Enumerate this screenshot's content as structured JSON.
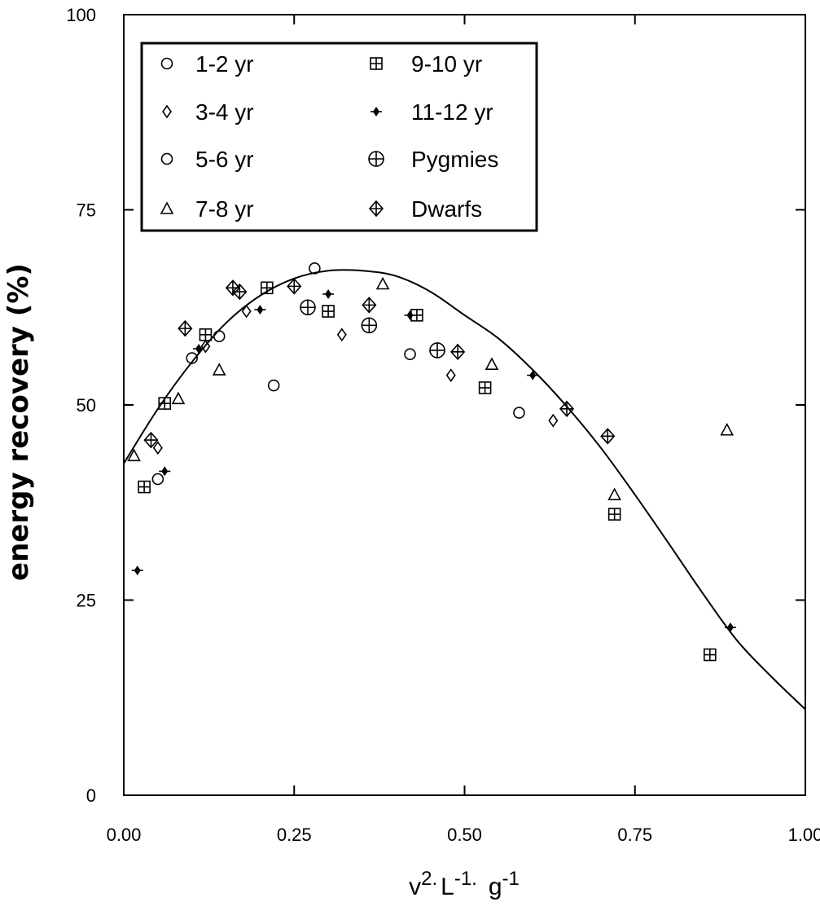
{
  "chart_data": {
    "type": "scatter",
    "title": "",
    "xlabel": {
      "v": "v",
      "v_exp": "2.",
      "L": "L",
      "L_exp": "-1.",
      "g": "g",
      "g_exp": "-1"
    },
    "ylabel": "energy recovery (%)",
    "xlim": [
      0,
      1
    ],
    "ylim": [
      0,
      100
    ],
    "xticks": [
      0,
      0.25,
      0.5,
      0.75,
      1.0
    ],
    "xtick_labels": [
      "0.00",
      "0.25",
      "0.50",
      "0.75",
      "1.00"
    ],
    "yticks": [
      0,
      25,
      50,
      75,
      100
    ],
    "ytick_labels": [
      "0",
      "25",
      "50",
      "75",
      "100"
    ],
    "legend_position": "top-left",
    "series": [
      {
        "name": "1-2 yr",
        "marker": "circle",
        "x": [
          0.22,
          0.42,
          0.58,
          0.14
        ],
        "y": [
          52.5,
          56.5,
          49,
          58.8
        ]
      },
      {
        "name": "3-4 yr",
        "marker": "diamond",
        "x": [
          0.05,
          0.12,
          0.18,
          0.32,
          0.48,
          0.63
        ],
        "y": [
          44.5,
          57.5,
          62,
          59,
          53.8,
          48
        ]
      },
      {
        "name": "5-6 yr",
        "marker": "circle",
        "x": [
          0.05,
          0.1,
          0.28
        ],
        "y": [
          40.5,
          56,
          67.5
        ]
      },
      {
        "name": "7-8 yr",
        "marker": "triangle",
        "x": [
          0.015,
          0.08,
          0.14,
          0.38,
          0.54,
          0.72,
          0.885
        ],
        "y": [
          43.5,
          50.8,
          54.5,
          65.5,
          55.2,
          38.5,
          46.8
        ]
      },
      {
        "name": "9-10 yr",
        "marker": "square-plus",
        "x": [
          0.03,
          0.06,
          0.12,
          0.21,
          0.3,
          0.43,
          0.53,
          0.72,
          0.86
        ],
        "y": [
          39.5,
          50.2,
          59,
          65,
          62,
          61.5,
          52.2,
          36,
          18
        ]
      },
      {
        "name": "11-12 yr",
        "marker": "small-diamond-fill",
        "x": [
          0.02,
          0.06,
          0.11,
          0.2,
          0.3,
          0.42,
          0.6,
          0.89
        ],
        "y": [
          28.8,
          41.5,
          57.2,
          62.2,
          64.2,
          61.5,
          53.8,
          21.5
        ]
      },
      {
        "name": "Pygmies",
        "marker": "circle-plus",
        "x": [
          0.27,
          0.36,
          0.46
        ],
        "y": [
          62.5,
          60.2,
          57
        ]
      },
      {
        "name": "Dwarfs",
        "marker": "diamond-plus",
        "x": [
          0.04,
          0.09,
          0.16,
          0.17,
          0.25,
          0.36,
          0.49,
          0.65,
          0.71
        ],
        "y": [
          45.5,
          59.8,
          65,
          64.5,
          65.2,
          62.8,
          56.8,
          49.5,
          46
        ]
      }
    ],
    "fit_curve": {
      "name": "fit",
      "x": [
        0,
        0.05,
        0.1,
        0.15,
        0.2,
        0.25,
        0.3,
        0.35,
        0.4,
        0.45,
        0.5,
        0.55,
        0.6,
        0.65,
        0.7,
        0.75,
        0.8,
        0.85,
        0.9,
        0.95,
        1.0
      ],
      "y": [
        42.5,
        49.5,
        55.5,
        60.5,
        64,
        66.2,
        67.2,
        67.2,
        66.5,
        64.5,
        61.5,
        58.5,
        54.5,
        49.8,
        44.5,
        38.5,
        32.2,
        25.8,
        19.8,
        15.2,
        11
      ]
    }
  }
}
